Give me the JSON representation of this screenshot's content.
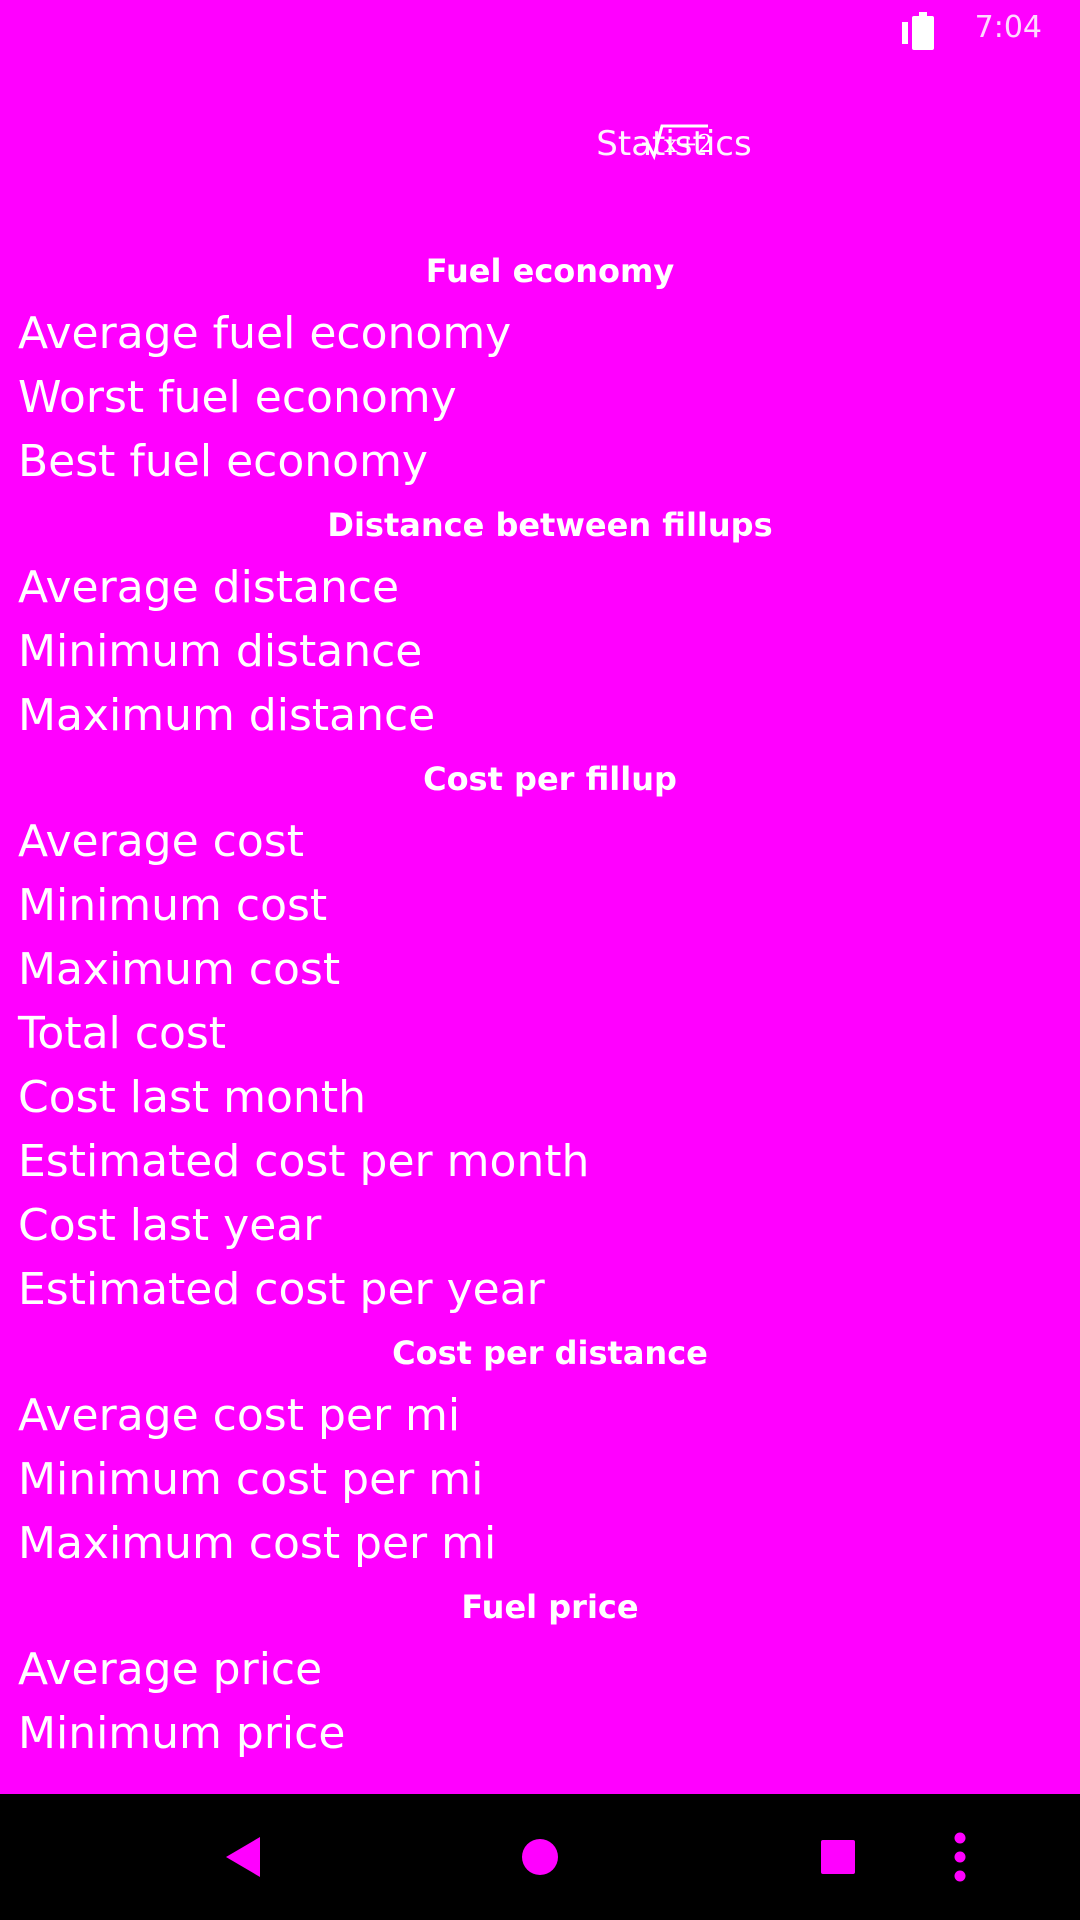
{
  "status_bar": {
    "time": "7:04",
    "colors": {
      "icon": "#FFFFFF"
    }
  },
  "header": {
    "title": "Statistics",
    "logo_icon": "sqrt-x-plus-2-logo"
  },
  "sections": [
    {
      "title": "Fuel economy",
      "rows": [
        "Average fuel economy",
        "Worst fuel economy",
        "Best fuel economy"
      ]
    },
    {
      "title": "Distance between fillups",
      "rows": [
        "Average distance",
        "Minimum distance",
        "Maximum distance"
      ]
    },
    {
      "title": "Cost per fillup",
      "rows": [
        "Average cost",
        "Minimum cost",
        "Maximum cost",
        "Total cost",
        "Cost last month",
        "Estimated cost per month",
        "Cost last year",
        "Estimated cost per year"
      ]
    },
    {
      "title": "Cost per distance",
      "rows": [
        "Average cost per mi",
        "Minimum cost per mi",
        "Maximum cost per mi"
      ]
    },
    {
      "title": "Fuel price",
      "rows": [
        "Average price",
        "Minimum price"
      ]
    }
  ],
  "nav_bar": {
    "back_icon": "back-triangle-icon",
    "home_icon": "home-circle-icon",
    "recents_icon": "recents-square-icon",
    "more_icon": "more-vertical-icon"
  },
  "colors": {
    "background": "#FF00FF",
    "text": "#FFFFFF",
    "nav_background": "#000000",
    "nav_icons": "#FF00FF"
  }
}
